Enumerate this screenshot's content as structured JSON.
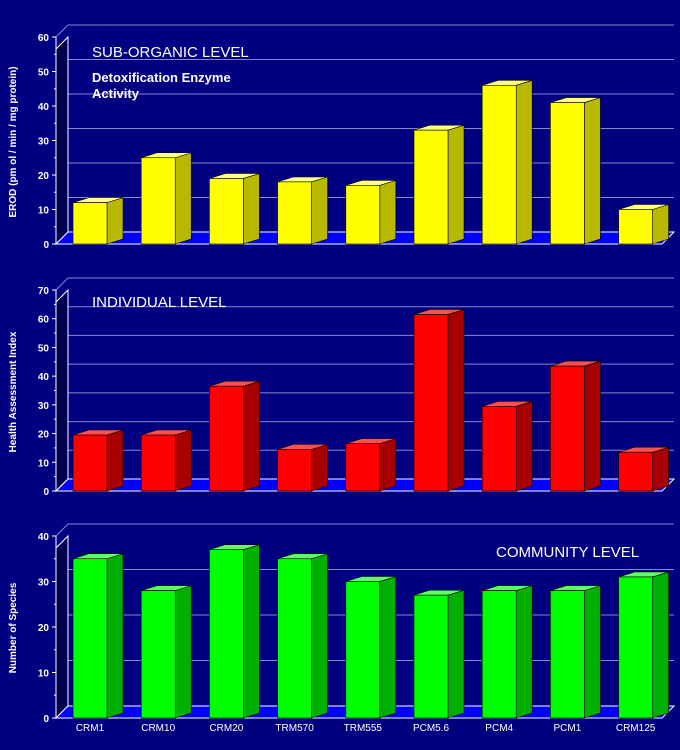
{
  "chart_data": [
    {
      "type": "bar",
      "title": "",
      "ylabel": "EROD  (pm ol / min / mg protein)",
      "annotations": [
        "SUB-ORGANIC LEVEL",
        "Detoxification Enzyme",
        "Activity"
      ],
      "categories": [
        "CRM1",
        "CRM10",
        "CRM20",
        "TRM570",
        "TRM555",
        "PCM5.6",
        "PCM4",
        "PCM1",
        "CRM125"
      ],
      "values": [
        12,
        25,
        19,
        18,
        17,
        33,
        46,
        41,
        10
      ],
      "ylim": [
        0,
        60
      ],
      "yticks": [
        0,
        10,
        20,
        30,
        40,
        50,
        60
      ],
      "colors": {
        "front": "#ffff00",
        "top": "#ffff80",
        "side": "#b8b800"
      }
    },
    {
      "type": "bar",
      "title": "",
      "ylabel": "Health  Assessment  Index",
      "annotations": [
        "INDIVIDUAL LEVEL"
      ],
      "categories": [
        "CRM1",
        "CRM10",
        "CRM20",
        "TRM570",
        "TRM555",
        "PCM5.6",
        "PCM4",
        "PCM1",
        "CRM125"
      ],
      "values": [
        19.5,
        19.5,
        36.5,
        14.5,
        16.5,
        61.5,
        29.5,
        43.5,
        13.5
      ],
      "ylim": [
        0,
        70
      ],
      "yticks": [
        0,
        10,
        20,
        30,
        40,
        50,
        60,
        70
      ],
      "colors": {
        "front": "#ff0000",
        "top": "#ff5050",
        "side": "#a80000"
      }
    },
    {
      "type": "bar",
      "title": "",
      "ylabel": "Number  of  Species",
      "annotations": [
        "COMMUNITY LEVEL"
      ],
      "categories": [
        "CRM1",
        "CRM10",
        "CRM20",
        "TRM570",
        "TRM555",
        "PCM5.6",
        "PCM4",
        "PCM1",
        "CRM125"
      ],
      "values": [
        35,
        28,
        37,
        35,
        30,
        27,
        28,
        28,
        31
      ],
      "ylim": [
        0,
        40
      ],
      "yticks": [
        0,
        10,
        20,
        30,
        40
      ],
      "colors": {
        "front": "#00ff00",
        "top": "#60ff60",
        "side": "#00b000"
      }
    }
  ],
  "colors": {
    "background": "#000080",
    "floor": "#0000ff",
    "grid": "#8888cc",
    "text": "#ffffff"
  }
}
